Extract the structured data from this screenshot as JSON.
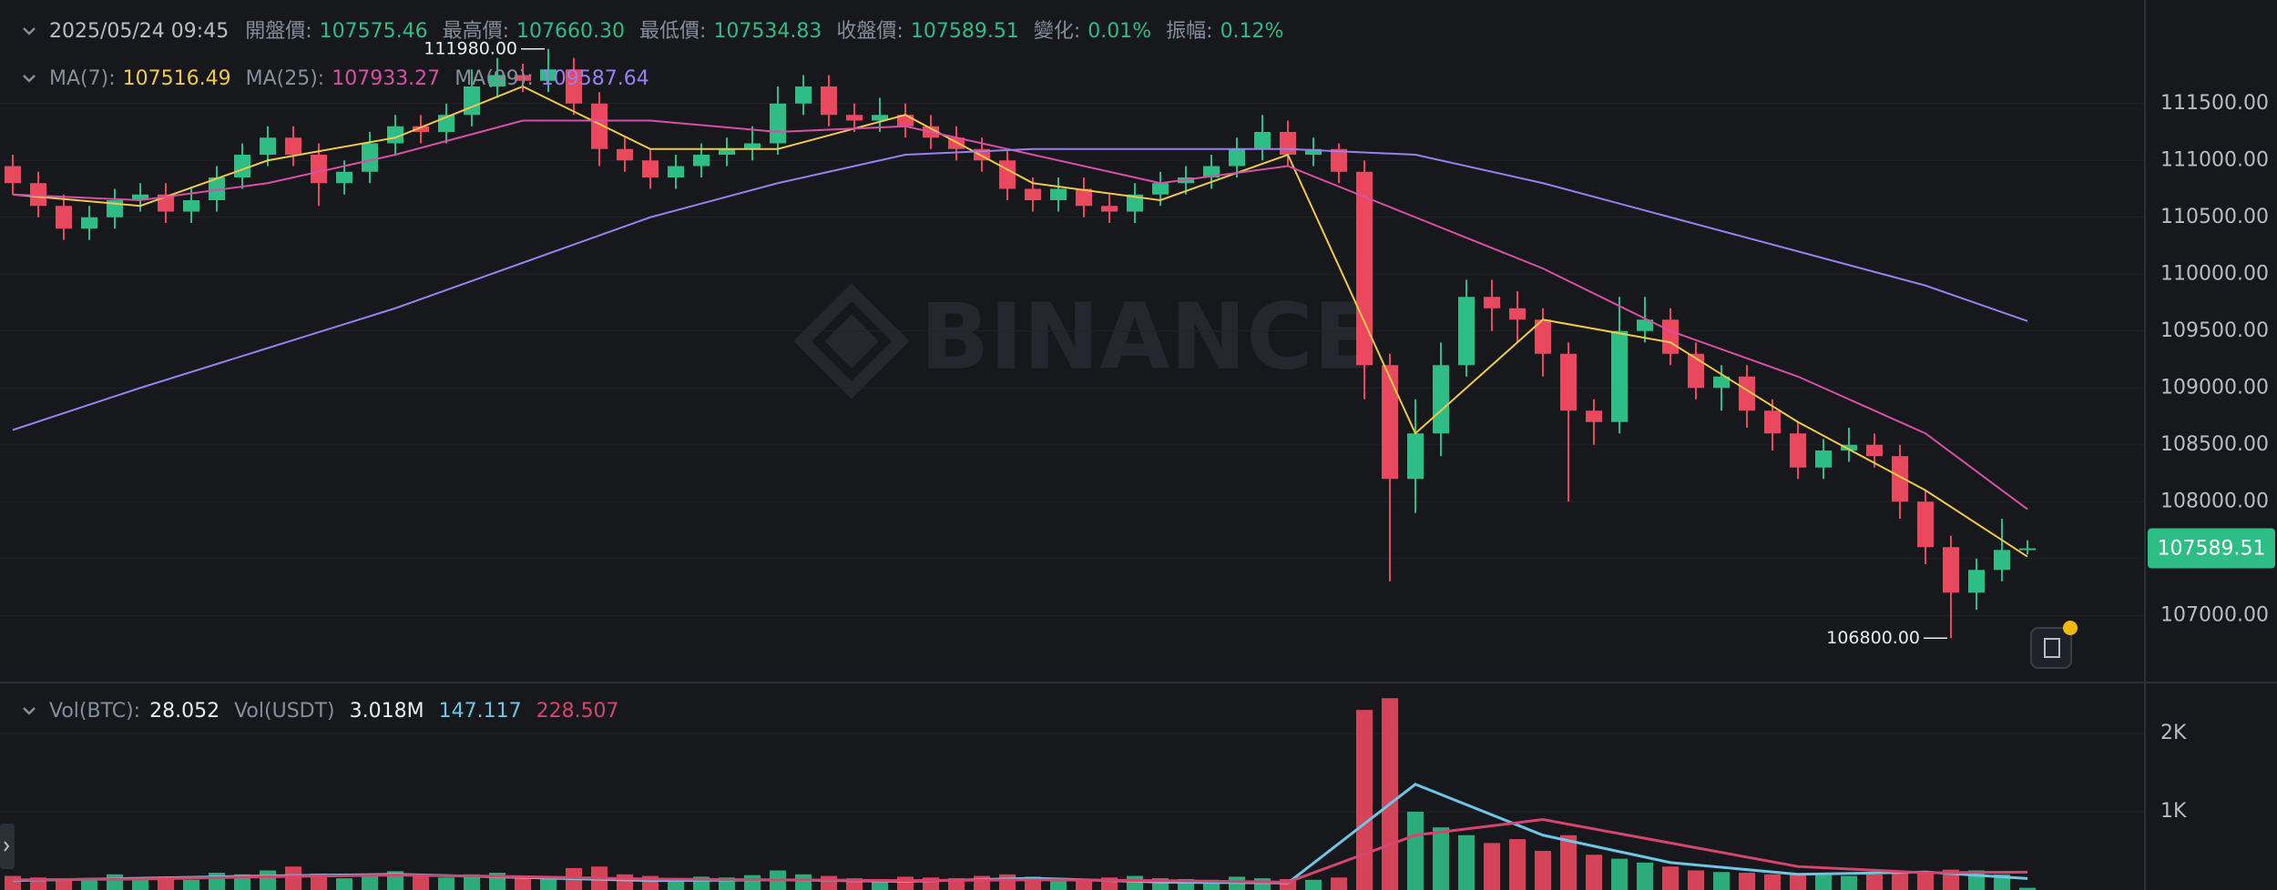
{
  "chart_data": {
    "type": "candlestick",
    "watermark": "BINANCE",
    "info": {
      "datetime": "2025/05/24 09:45",
      "fields": [
        {
          "label": "開盤價:",
          "value": "107575.46"
        },
        {
          "label": "最高價:",
          "value": "107660.30"
        },
        {
          "label": "最低價:",
          "value": "107534.83"
        },
        {
          "label": "收盤價:",
          "value": "107589.51"
        },
        {
          "label": "變化:",
          "value": "0.01%"
        },
        {
          "label": "振幅:",
          "value": "0.12%"
        }
      ]
    },
    "up_color": "#2ebd85",
    "down_color": "#e9485f",
    "grid": true,
    "ylim": [
      106410,
      112410
    ],
    "yticks": [
      {
        "value": 107000,
        "label": "107000.00"
      },
      {
        "value": 107500,
        "label": "107500.00"
      },
      {
        "value": 108000,
        "label": "108000.00"
      },
      {
        "value": 108500,
        "label": "108500.00"
      },
      {
        "value": 109000,
        "label": "109000.00"
      },
      {
        "value": 109500,
        "label": "109500.00"
      },
      {
        "value": 110000,
        "label": "110000.00"
      },
      {
        "value": 110500,
        "label": "110500.00"
      },
      {
        "value": 111000,
        "label": "111000.00"
      },
      {
        "value": 111500,
        "label": "111500.00"
      }
    ],
    "ohlc": {
      "open": [
        110950,
        110800,
        110600,
        110400,
        110500,
        110650,
        110700,
        110550,
        110650,
        110850,
        111050,
        111200,
        111050,
        110800,
        110900,
        111150,
        111300,
        111250,
        111400,
        111650,
        111750,
        111700,
        111800,
        111500,
        111100,
        111000,
        110850,
        110950,
        111050,
        111100,
        111150,
        111500,
        111650,
        111400,
        111350,
        111400,
        111300,
        111200,
        111100,
        111000,
        110750,
        110650,
        110750,
        110600,
        110550,
        110700,
        110800,
        110850,
        110950,
        111100,
        111250,
        111050,
        111100,
        110900,
        109200,
        108200,
        108600,
        109200,
        109800,
        109700,
        109600,
        109300,
        108800,
        108700,
        109500,
        109600,
        109300,
        109000,
        109100,
        108800,
        108600,
        108300,
        108450,
        108500,
        108400,
        108000,
        107600,
        107200,
        107400,
        107575.46
      ],
      "high": [
        111050,
        110900,
        110700,
        110600,
        110750,
        110800,
        110800,
        110750,
        110950,
        111150,
        111300,
        111300,
        111150,
        111000,
        111250,
        111400,
        111400,
        111500,
        111800,
        111900,
        111850,
        111980,
        111900,
        111600,
        111200,
        111100,
        111050,
        111150,
        111200,
        111300,
        111650,
        111750,
        111750,
        111500,
        111550,
        111500,
        111400,
        111300,
        111200,
        111100,
        110850,
        110850,
        110850,
        110700,
        110800,
        110900,
        110950,
        111050,
        111200,
        111400,
        111350,
        111200,
        111150,
        111000,
        109300,
        108900,
        109400,
        109950,
        109950,
        109850,
        109700,
        109400,
        108900,
        109800,
        109800,
        109700,
        109400,
        109200,
        109200,
        108900,
        108700,
        108550,
        108650,
        108600,
        108500,
        108100,
        107700,
        107500,
        107850,
        107660.3
      ],
      "low": [
        110700,
        110500,
        110300,
        110300,
        110400,
        110550,
        110450,
        110450,
        110550,
        110750,
        110950,
        110950,
        110600,
        110700,
        110800,
        111050,
        111150,
        111150,
        111300,
        111550,
        111600,
        111600,
        111400,
        110950,
        110900,
        110750,
        110750,
        110850,
        110950,
        111000,
        111050,
        111400,
        111300,
        111250,
        111250,
        111200,
        111100,
        111000,
        110900,
        110650,
        110550,
        110550,
        110500,
        110450,
        110450,
        110600,
        110700,
        110750,
        110850,
        111000,
        110950,
        110950,
        110800,
        108900,
        107300,
        107900,
        108400,
        109100,
        109500,
        109400,
        109100,
        108000,
        108500,
        108600,
        109400,
        109200,
        108900,
        108800,
        108650,
        108450,
        108200,
        108200,
        108350,
        108300,
        107850,
        107450,
        106800,
        107050,
        107300,
        107534.83
      ],
      "close": [
        110800,
        110600,
        110400,
        110500,
        110650,
        110700,
        110550,
        110650,
        110850,
        111050,
        111200,
        111050,
        110800,
        110900,
        111150,
        111300,
        111250,
        111400,
        111650,
        111750,
        111700,
        111800,
        111500,
        111100,
        111000,
        110850,
        110950,
        111050,
        111100,
        111150,
        111500,
        111650,
        111400,
        111350,
        111400,
        111300,
        111200,
        111100,
        111000,
        110750,
        110650,
        110750,
        110600,
        110550,
        110700,
        110800,
        110850,
        110950,
        111100,
        111250,
        111050,
        111100,
        110900,
        109200,
        108200,
        108600,
        109200,
        109800,
        109700,
        109600,
        109300,
        108800,
        108700,
        109500,
        109600,
        109300,
        109000,
        109100,
        108800,
        108600,
        108300,
        108450,
        108500,
        108400,
        108000,
        107600,
        107200,
        107400,
        107575.46,
        107589.51
      ]
    },
    "ma": [
      {
        "name": "MA(7):",
        "color": "#f0c94a",
        "x": [
          0,
          5,
          10,
          15,
          20,
          25,
          30,
          35,
          40,
          45,
          50,
          55,
          60,
          65,
          70,
          75,
          79
        ],
        "values": [
          110700,
          110600,
          111000,
          111200,
          111650,
          111100,
          111100,
          111400,
          110800,
          110650,
          111050,
          108600,
          109600,
          109400,
          108700,
          108100,
          107516.49
        ]
      },
      {
        "name": "MA(25):",
        "color": "#d94fa6",
        "x": [
          0,
          5,
          10,
          15,
          20,
          25,
          30,
          35,
          40,
          45,
          50,
          55,
          60,
          65,
          70,
          75,
          79
        ],
        "values": [
          110700,
          110650,
          110800,
          111050,
          111350,
          111350,
          111250,
          111300,
          111050,
          110800,
          110950,
          110500,
          110050,
          109500,
          109100,
          108600,
          107933.27
        ]
      },
      {
        "name": "MA(99):",
        "color": "#9a7ff0",
        "x": [
          0,
          5,
          10,
          15,
          20,
          25,
          30,
          35,
          40,
          45,
          50,
          55,
          60,
          65,
          70,
          75,
          79
        ],
        "values": [
          108630,
          109000,
          109350,
          109700,
          110100,
          110500,
          110800,
          111050,
          111100,
          111100,
          111100,
          111050,
          110800,
          110500,
          110200,
          109900,
          109587.64
        ]
      }
    ],
    "annotations": [
      {
        "text": "111980.00",
        "index": 21,
        "value": 111980
      },
      {
        "text": "106800.00",
        "index": 76,
        "value": 106800
      }
    ],
    "volume": {
      "label": "Vol(BTC):",
      "quote_label": "Vol(USDT)",
      "quote_value": "3.018M",
      "ylim": [
        0,
        2650
      ],
      "yticks": [
        {
          "value": 1000,
          "label": "1K"
        },
        {
          "value": 2000,
          "label": "2K"
        }
      ],
      "values": [
        180,
        160,
        120,
        140,
        200,
        150,
        170,
        130,
        220,
        200,
        250,
        300,
        210,
        150,
        180,
        240,
        190,
        160,
        200,
        220,
        170,
        150,
        280,
        300,
        200,
        180,
        150,
        170,
        160,
        190,
        250,
        200,
        180,
        150,
        140,
        170,
        160,
        150,
        180,
        200,
        170,
        150,
        130,
        160,
        180,
        150,
        140,
        130,
        170,
        150,
        140,
        130,
        160,
        2300,
        2450,
        1000,
        800,
        700,
        600,
        650,
        500,
        700,
        450,
        400,
        350,
        300,
        250,
        230,
        220,
        200,
        210,
        190,
        180,
        200,
        220,
        230,
        260,
        250,
        200,
        28.052
      ],
      "ma": [
        {
          "color": "#6ec6e6",
          "x": [
            0,
            5,
            10,
            15,
            20,
            25,
            30,
            35,
            40,
            45,
            50,
            55,
            60,
            65,
            70,
            75,
            79
          ],
          "values": [
            120,
            150,
            180,
            200,
            160,
            120,
            130,
            110,
            150,
            100,
            90,
            1350,
            700,
            350,
            200,
            230,
            147.117
          ]
        },
        {
          "color": "#d6456e",
          "x": [
            0,
            5,
            10,
            15,
            20,
            25,
            30,
            35,
            40,
            45,
            50,
            55,
            60,
            65,
            70,
            75,
            79
          ],
          "values": [
            130,
            140,
            170,
            190,
            170,
            140,
            130,
            120,
            130,
            120,
            100,
            700,
            900,
            600,
            300,
            220,
            228.507
          ]
        }
      ]
    }
  }
}
